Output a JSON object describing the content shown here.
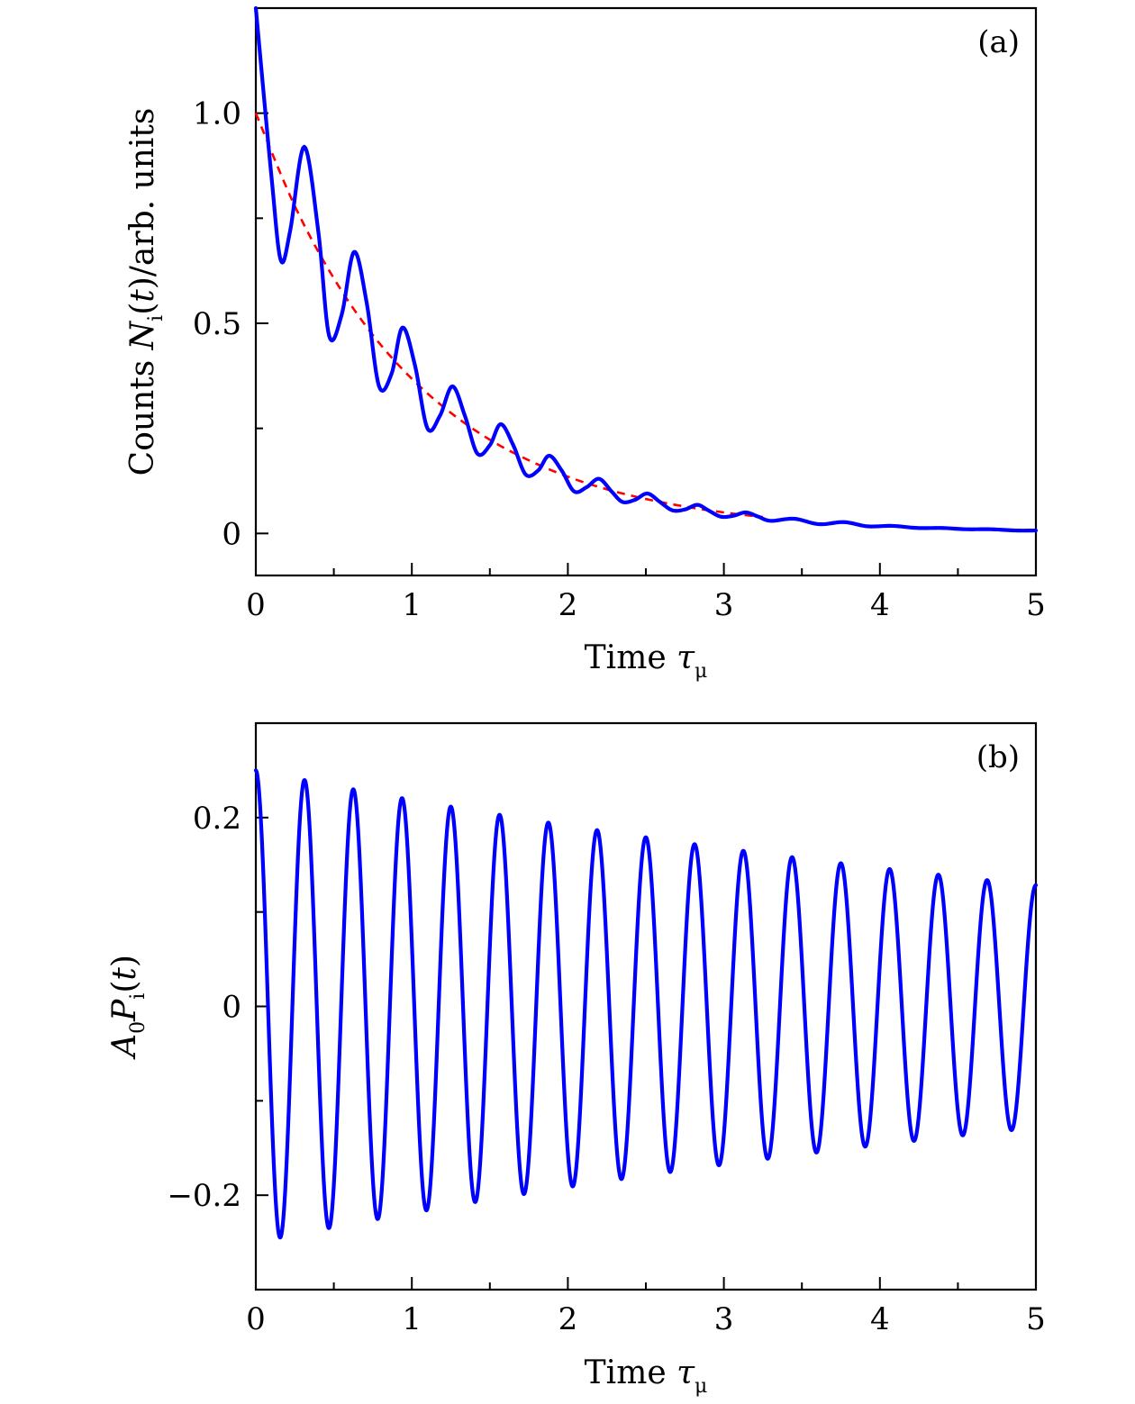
{
  "chart_data": [
    {
      "type": "line",
      "panel_label": "(a)",
      "xlabel": {
        "text": "Time ",
        "symbol": "τ",
        "sub": "μ"
      },
      "ylabel": {
        "prefix": "Counts ",
        "symbol": "N",
        "sub": "i",
        "paren": "(",
        "var": "t",
        "suffix": ")/arb. units"
      },
      "xlim": [
        0,
        5
      ],
      "ylim": [
        -0.1,
        1.25
      ],
      "xticks": [
        0,
        1,
        2,
        3,
        4,
        5
      ],
      "xtick_labels": [
        "0",
        "1",
        "2",
        "3",
        "4",
        "5"
      ],
      "yticks": [
        0,
        0.5,
        1.0
      ],
      "ytick_labels": [
        "0",
        "0.5",
        "1.0"
      ],
      "grid": false,
      "series": [
        {
          "style": "solid",
          "color": "#0000ff",
          "x": [
            0,
            0.1,
            0.16,
            0.22,
            0.31,
            0.4,
            0.47,
            0.55,
            0.63,
            0.71,
            0.79,
            0.87,
            0.94,
            1.02,
            1.1,
            1.18,
            1.26,
            1.34,
            1.42,
            1.5,
            1.57,
            1.65,
            1.73,
            1.81,
            1.88,
            1.96,
            2.04,
            2.12,
            2.2,
            2.28,
            2.35,
            2.43,
            2.51,
            2.59,
            2.67,
            2.75,
            2.83,
            2.9,
            2.98,
            3.06,
            3.14,
            3.22,
            3.3,
            3.45,
            3.61,
            3.77,
            3.92,
            4.08,
            4.24,
            4.4,
            4.55,
            4.71,
            4.87,
            5.0
          ],
          "y": [
            1.25,
            0.85,
            0.65,
            0.72,
            0.92,
            0.72,
            0.47,
            0.52,
            0.67,
            0.55,
            0.35,
            0.38,
            0.49,
            0.4,
            0.25,
            0.28,
            0.35,
            0.28,
            0.19,
            0.21,
            0.26,
            0.21,
            0.14,
            0.15,
            0.185,
            0.15,
            0.1,
            0.11,
            0.13,
            0.1,
            0.075,
            0.08,
            0.095,
            0.075,
            0.055,
            0.057,
            0.068,
            0.055,
            0.04,
            0.042,
            0.05,
            0.04,
            0.03,
            0.035,
            0.022,
            0.027,
            0.017,
            0.018,
            0.013,
            0.013,
            0.01,
            0.01,
            0.007,
            0.007
          ]
        },
        {
          "style": "dashed",
          "color": "#ff0000",
          "x": [
            0,
            0.25,
            0.5,
            0.75,
            1.0,
            1.25,
            1.5,
            1.75,
            2.0,
            2.25,
            2.5,
            2.75,
            3.0,
            3.25
          ],
          "y": [
            1.0,
            0.779,
            0.607,
            0.472,
            0.368,
            0.287,
            0.223,
            0.174,
            0.135,
            0.105,
            0.082,
            0.064,
            0.05,
            0.039
          ]
        }
      ]
    },
    {
      "type": "line",
      "panel_label": "(b)",
      "xlabel": {
        "text": "Time ",
        "symbol": "τ",
        "sub": "μ"
      },
      "ylabel": {
        "a": "A",
        "a_sub": "0",
        "p": "P",
        "p_sub": "i",
        "paren": "(",
        "var": "t",
        "close": ")"
      },
      "xlim": [
        0,
        5
      ],
      "ylim": [
        -0.3,
        0.3
      ],
      "xticks": [
        0,
        1,
        2,
        3,
        4,
        5
      ],
      "xtick_labels": [
        "0",
        "1",
        "2",
        "3",
        "4",
        "5"
      ],
      "yticks": [
        -0.2,
        0,
        0.2
      ],
      "ytick_labels": [
        "−0.2",
        "0",
        "0.2"
      ],
      "grid": false,
      "series": [
        {
          "style": "solid",
          "color": "#0000ff",
          "model": "damped_cosine",
          "amplitude": 0.25,
          "period": 0.3125,
          "decay_time": 7.5,
          "x_start": 0,
          "x_end": 5
        }
      ]
    }
  ]
}
